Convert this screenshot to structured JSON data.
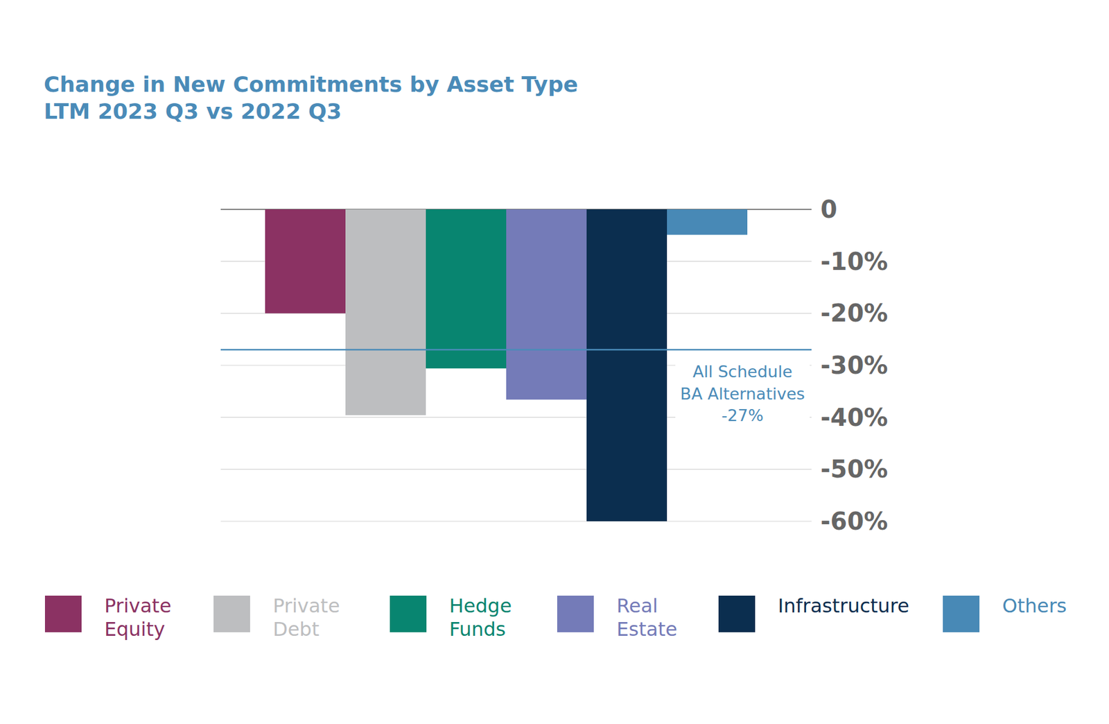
{
  "chart_data": {
    "type": "bar",
    "title": "Change in New Commitments by Asset Type",
    "subtitle": "LTM 2023 Q3 vs 2022 Q3",
    "categories": [
      "Private Equity",
      "Private Debt",
      "Hedge Funds",
      "Real Estate",
      "Infrastructure",
      "Others"
    ],
    "values": [
      -20,
      -39.6,
      -30.6,
      -36.6,
      -60,
      -4.9
    ],
    "colors": [
      "#8b3263",
      "#bdbec0",
      "#088570",
      "#747bb8",
      "#0b2e4f",
      "#4889b6"
    ],
    "ylim": [
      -60,
      0
    ],
    "yticks": [
      0,
      {
        "value": -10,
        "label": "-10%"
      },
      {
        "value": -20,
        "label": "-20%"
      },
      {
        "value": -30,
        "label": "-30%"
      },
      {
        "value": -40,
        "label": "-40%"
      },
      {
        "value": -50,
        "label": "-50%"
      },
      {
        "value": -60,
        "label": "-60%"
      }
    ],
    "grid": true,
    "legend": "bottom",
    "tick_labels": "y",
    "reference_line": {
      "value": -27,
      "label_lines": [
        "All Schedule",
        "BA Alternatives",
        "-27%"
      ],
      "color": "#4a8bb8"
    }
  }
}
